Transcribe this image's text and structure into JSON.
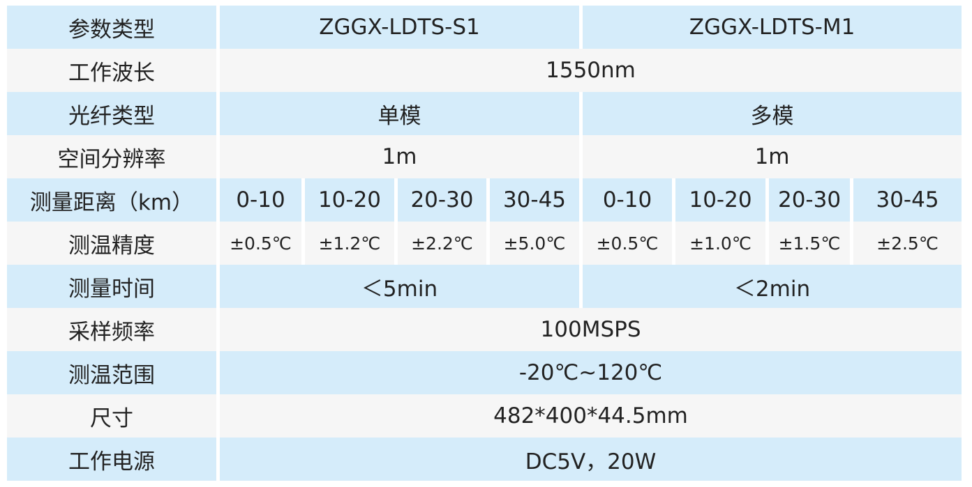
{
  "colors": {
    "blue_row": "#d5ecfa",
    "gray_row": "#f6f6f6",
    "text": "#222222"
  },
  "rows": {
    "model": {
      "label": "参数类型",
      "s1": "ZGGX-LDTS-S1",
      "m1": "ZGGX-LDTS-M1"
    },
    "wavelength": {
      "label": "工作波长",
      "value": "1550nm"
    },
    "fiber": {
      "label": "光纤类型",
      "s1": "单模",
      "m1": "多模"
    },
    "resolution": {
      "label": "空间分辨率",
      "s1": "1m",
      "m1": "1m"
    },
    "distance": {
      "label": "测量距离（km）",
      "values": [
        "0-10",
        "10-20",
        "20-30",
        "30-45",
        "0-10",
        "10-20",
        "20-30",
        "30-45"
      ]
    },
    "accuracy": {
      "label": "测温精度",
      "values": [
        "±0.5℃",
        "±1.2℃",
        "±2.2℃",
        "±5.0℃",
        "±0.5℃",
        "±1.0℃",
        "±1.5℃",
        "±2.5℃"
      ]
    },
    "time": {
      "label": "测量时间",
      "s1": "＜5min",
      "m1": "＜2min"
    },
    "sampling": {
      "label": "采样频率",
      "value": "100MSPS"
    },
    "range": {
      "label": "测温范围",
      "value": "-20℃~120℃"
    },
    "size": {
      "label": "尺寸",
      "value": "482*400*44.5mm"
    },
    "power": {
      "label": "工作电源",
      "value": "DC5V，20W"
    }
  }
}
